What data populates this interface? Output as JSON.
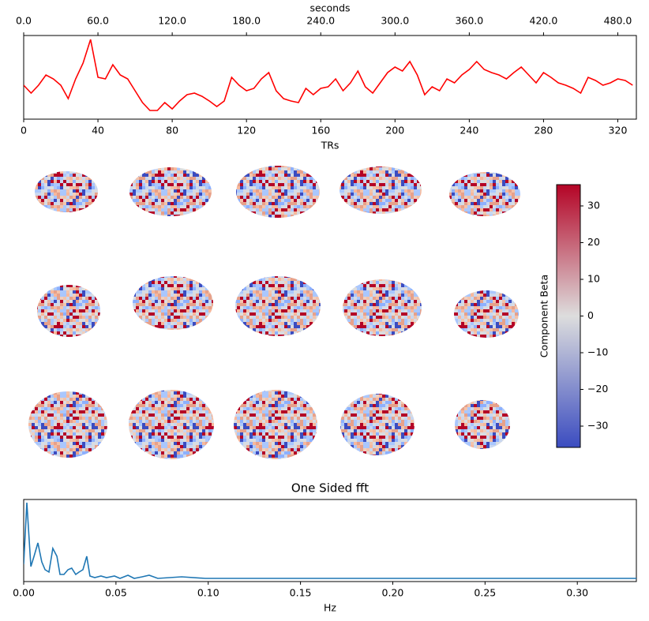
{
  "chart_data": [
    {
      "type": "line",
      "color": "#ff0000",
      "xlabel": "TRs",
      "top_xlabel": "seconds",
      "xlim": [
        0,
        330
      ],
      "xticks": [
        0,
        40,
        80,
        120,
        160,
        200,
        240,
        280,
        320
      ],
      "top_xlim": [
        0,
        495
      ],
      "top_xticks": [
        {
          "value": 0,
          "label": "0.0"
        },
        {
          "value": 60,
          "label": "60.0"
        },
        {
          "value": 120,
          "label": "120.0"
        },
        {
          "value": 180,
          "label": "180.0"
        },
        {
          "value": 240,
          "label": "240.0"
        },
        {
          "value": 300,
          "label": "300.0"
        },
        {
          "value": 360,
          "label": "360.0"
        },
        {
          "value": 420,
          "label": "420.0"
        },
        {
          "value": 480,
          "label": "480.0"
        }
      ],
      "ylim": [
        -2.05,
        3.25
      ],
      "x": [
        0,
        4,
        8,
        12,
        16,
        20,
        24,
        28,
        32,
        36,
        40,
        44,
        48,
        52,
        56,
        60,
        64,
        68,
        72,
        76,
        80,
        84,
        88,
        92,
        96,
        100,
        104,
        108,
        112,
        116,
        120,
        124,
        128,
        132,
        136,
        140,
        144,
        148,
        152,
        156,
        160,
        164,
        168,
        172,
        176,
        180,
        184,
        188,
        192,
        196,
        200,
        204,
        208,
        212,
        216,
        220,
        224,
        228,
        232,
        236,
        240,
        244,
        248,
        252,
        256,
        260,
        264,
        268,
        272,
        276,
        280,
        284,
        288,
        292,
        296,
        300,
        304,
        308,
        312,
        316,
        320,
        324,
        328
      ],
      "values": [
        0.1,
        -0.4,
        0.1,
        0.75,
        0.5,
        0.1,
        -0.75,
        0.5,
        1.5,
        3.0,
        0.6,
        0.5,
        1.4,
        0.75,
        0.5,
        -0.25,
        -1.0,
        -1.5,
        -1.5,
        -1.0,
        -1.4,
        -0.9,
        -0.5,
        -0.4,
        -0.6,
        -0.9,
        -1.25,
        -0.9,
        0.6,
        0.1,
        -0.25,
        -0.1,
        0.5,
        0.9,
        -0.25,
        -0.75,
        -0.9,
        -1.0,
        -0.1,
        -0.5,
        -0.1,
        0,
        0.5,
        -0.25,
        0.25,
        1.0,
        0,
        -0.4,
        0.25,
        0.9,
        1.25,
        1.0,
        1.6,
        0.75,
        -0.5,
        0,
        -0.25,
        0.5,
        0.25,
        0.75,
        1.1,
        1.6,
        1.1,
        0.9,
        0.75,
        0.5,
        0.9,
        1.25,
        0.75,
        0.25,
        0.9,
        0.6,
        0.25,
        0.1,
        -0.1,
        -0.4,
        0.6,
        0.4,
        0.1,
        0.25,
        0.5,
        0.4,
        0.1
      ]
    },
    {
      "type": "colorbar",
      "label": "Component Beta",
      "colormap": [
        "#3b4cc0",
        "#dddddd",
        "#b40426"
      ],
      "clim": [
        -35.8,
        35.8
      ],
      "ticks": [
        {
          "value": -30,
          "label": "−30"
        },
        {
          "value": -20,
          "label": "−20"
        },
        {
          "value": -10,
          "label": "−10"
        },
        0,
        10,
        20,
        30
      ]
    },
    {
      "type": "line",
      "title": "One Sided fft",
      "xlabel": "Hz",
      "color": "#1f77b4",
      "xlim": [
        0,
        0.332
      ],
      "xticks": [
        {
          "value": 0,
          "label": "0.00"
        },
        0.05,
        {
          "value": 0.1,
          "label": "0.10"
        },
        0.15,
        {
          "value": 0.2,
          "label": "0.20"
        },
        0.25,
        {
          "value": 0.3,
          "label": "0.30"
        }
      ],
      "ylim": [
        -0.2,
        10.2
      ],
      "x": [
        0,
        0.0017,
        0.0039,
        0.0056,
        0.0077,
        0.0098,
        0.0116,
        0.0137,
        0.0158,
        0.018,
        0.0197,
        0.0218,
        0.024,
        0.026,
        0.0282,
        0.03,
        0.0321,
        0.0342,
        0.0359,
        0.0385,
        0.0419,
        0.0449,
        0.0492,
        0.0522,
        0.0565,
        0.0599,
        0.0642,
        0.068,
        0.0727,
        0.0856,
        0.0984,
        0.1155,
        0.1583,
        0.2011,
        0.2439,
        0.2867,
        0.332
      ],
      "values": [
        2.0,
        9.8,
        1.7,
        3.0,
        4.7,
        2.3,
        1.3,
        1.0,
        4.0,
        3.0,
        0.7,
        0.7,
        1.3,
        1.5,
        0.7,
        1.0,
        1.3,
        3.0,
        0.5,
        0.3,
        0.5,
        0.3,
        0.5,
        0.2,
        0.6,
        0.2,
        0.4,
        0.6,
        0.2,
        0.4,
        0.2,
        0.2,
        0.2,
        0.2,
        0.2,
        0.2,
        0.2
      ]
    }
  ]
}
